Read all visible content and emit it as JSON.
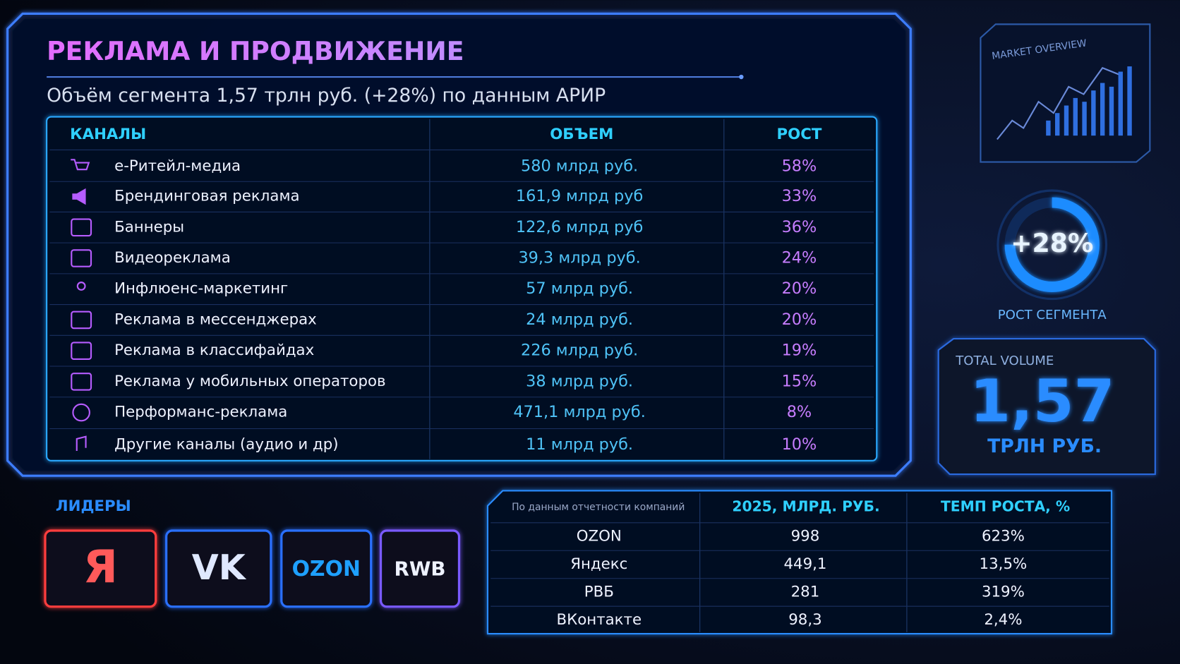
{
  "header": {
    "title": "РЕКЛАМА И ПРОДВИЖЕНИЕ",
    "subtitle": "Объём сегмента 1,57 трлн руб. (+28%) по данным АРИР"
  },
  "channels_table": {
    "columns": [
      "КАНАЛЫ",
      "ОБЪЕМ",
      "РОСТ"
    ],
    "rows": [
      [
        "е-Ритейл-медиа",
        "580 млрд руб.",
        "58%"
      ],
      [
        "Брендинговая реклама",
        "161,9 млрд руб",
        "33%"
      ],
      [
        "Баннеры",
        "122,6 млрд руб",
        "36%"
      ],
      [
        "Видеореклама",
        "39,3 млрд руб.",
        "24%"
      ],
      [
        "Инфлюенс-маркетинг",
        "57 млрд руб.",
        "20%"
      ],
      [
        "Реклама в мессенджерах",
        "24 млрд руб.",
        "20%"
      ],
      [
        "Реклама в классифайдах",
        "226 млрд руб.",
        "19%"
      ],
      [
        "Реклама у мобильных операторов",
        "38 млрд руб.",
        "15%"
      ],
      [
        "Перформанс-реклама",
        "471,1 млрд руб.",
        "8%"
      ],
      [
        "Другие каналы (аудио и др)",
        "11 млрд руб.",
        "10%"
      ]
    ]
  },
  "side": {
    "market_label": "MARKET OVERVIEW",
    "growth_badge": "+28%",
    "growth_caption": "РОСТ СЕГМЕНТА",
    "total_label": "TOTAL VOLUME",
    "total_value": "1,57",
    "total_unit": "ТРЛН РУБ."
  },
  "leaders": {
    "title": "ЛИДЕРЫ",
    "logos": [
      "Я",
      "VK",
      "OZON",
      "RWB"
    ]
  },
  "companies_table": {
    "note": "По данным отчетности компаний",
    "columns": [
      "2025, МЛРД. РУБ.",
      "ТЕМП РОСТА, %"
    ],
    "rows": [
      [
        "OZON",
        "998",
        "623%"
      ],
      [
        "Яндекс",
        "449,1",
        "13,5%"
      ],
      [
        "РВБ",
        "281",
        "319%"
      ],
      [
        "ВКонтакте",
        "98,3",
        "2,4%"
      ]
    ]
  }
}
